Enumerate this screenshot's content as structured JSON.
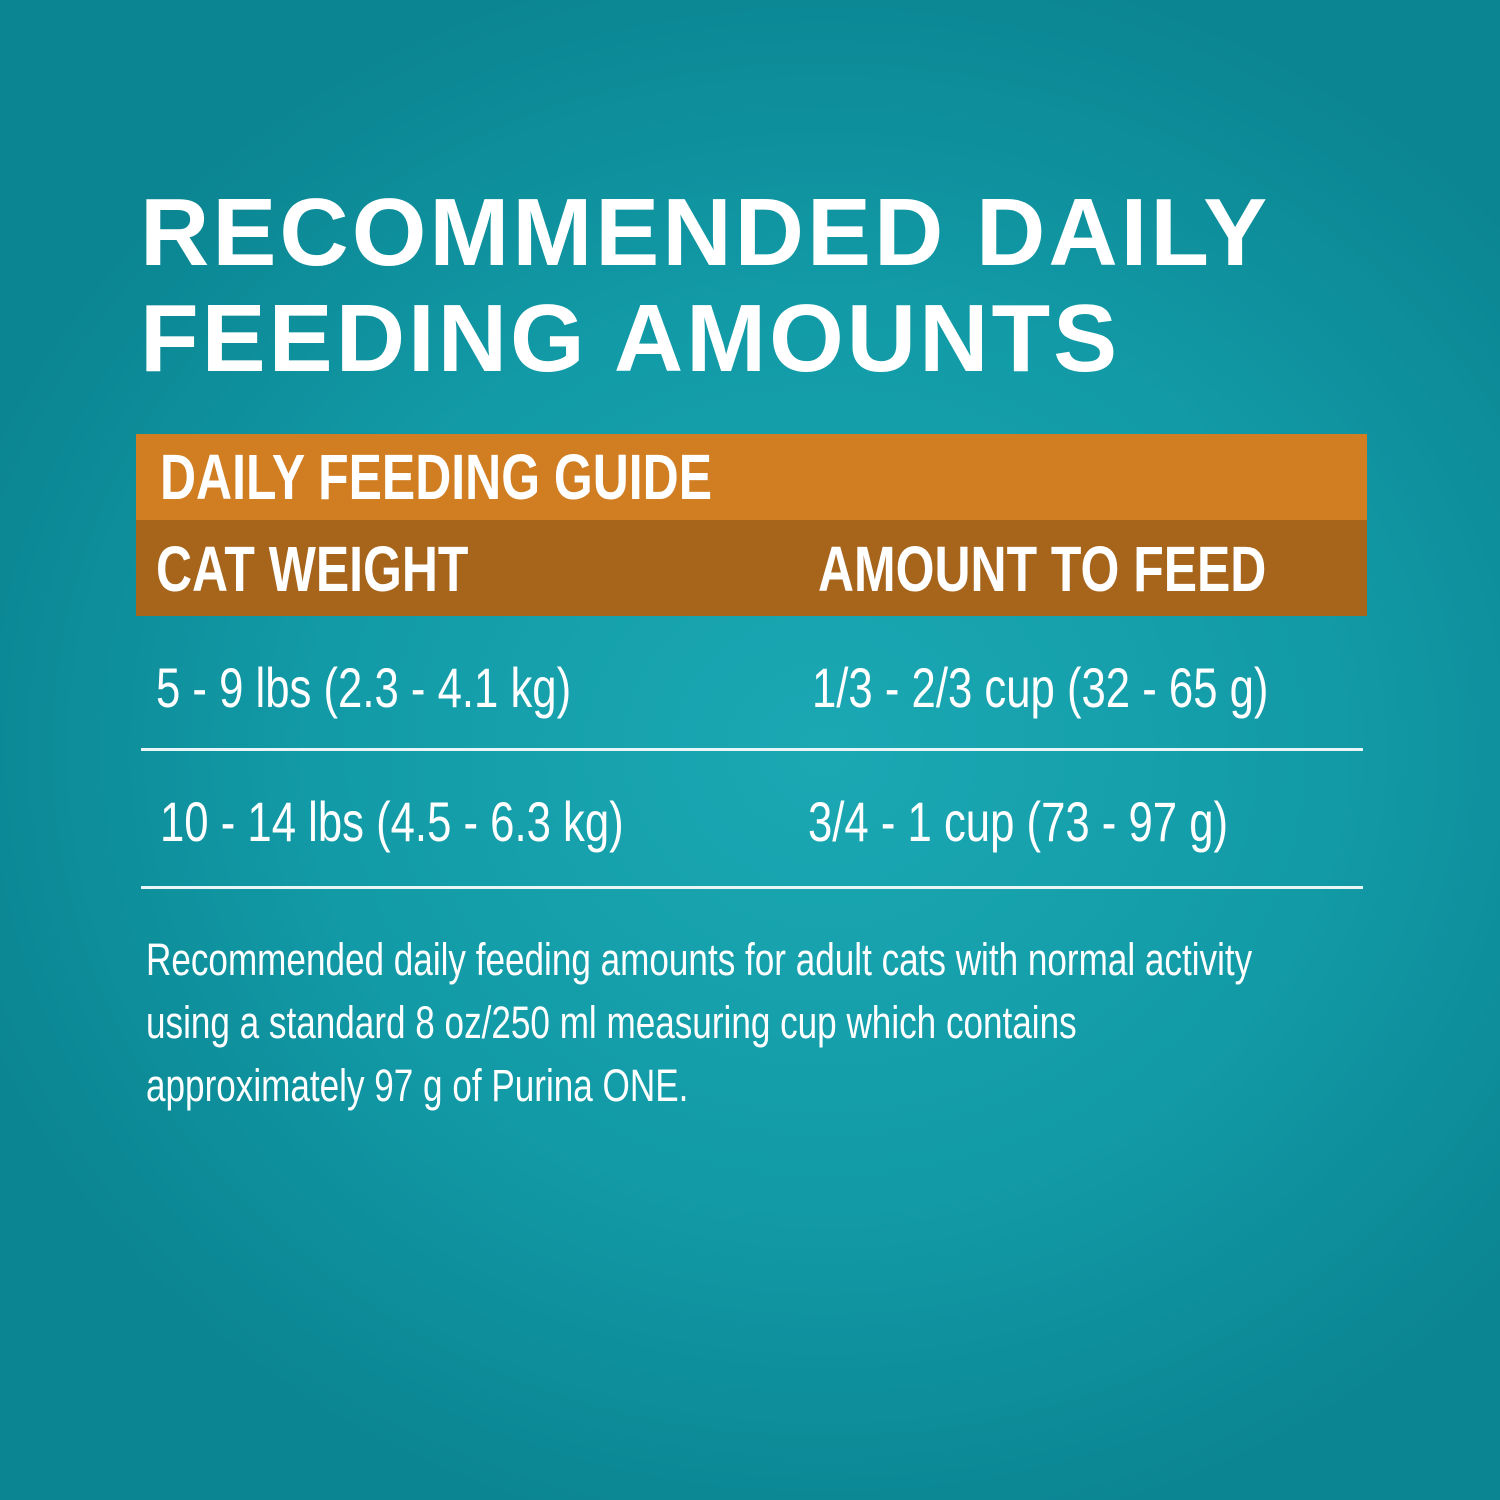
{
  "title": {
    "line1": "RECOMMENDED DAILY",
    "line2": "FEEDING AMOUNTS"
  },
  "table": {
    "caption": "DAILY FEEDING GUIDE",
    "headers": [
      "CAT WEIGHT",
      "AMOUNT TO FEED"
    ],
    "rows": [
      {
        "weight": "5 - 9 lbs (2.3 - 4.1 kg)",
        "amount": "1/3 - 2/3 cup (32 - 65 g)"
      },
      {
        "weight": "10 - 14 lbs (4.5 - 6.3 kg)",
        "amount": "3/4 - 1 cup (73 - 97 g)"
      }
    ]
  },
  "note": {
    "line1": "Recommended daily feeding amounts for adult cats with normal activity",
    "line2": "using a standard 8 oz/250 ml measuring cup which contains",
    "line3": "approximately 97 g of Purina ONE."
  },
  "colors": {
    "background": "#129ba7",
    "caption_band": "#d17e22",
    "header_band": "#a7641b",
    "text": "#ffffff"
  }
}
